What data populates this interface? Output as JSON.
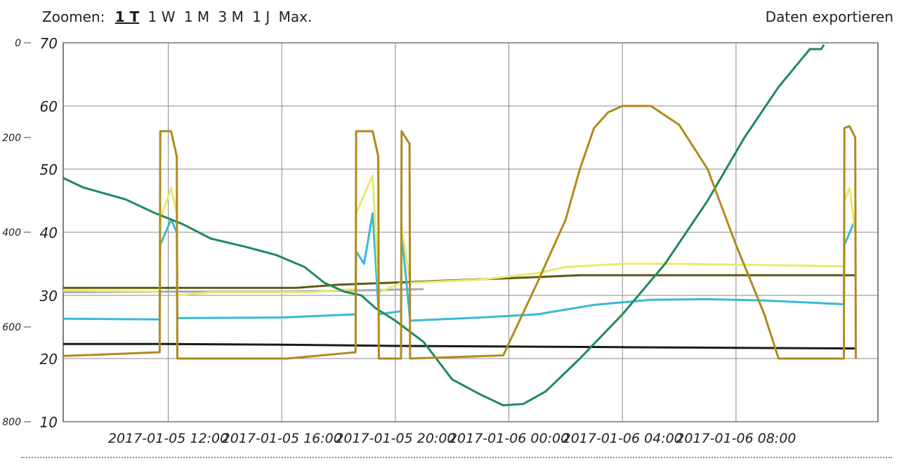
{
  "toolbar": {
    "zoom_label": "Zoomen:",
    "zoom_options": [
      "1 T",
      "1 W",
      "1 M",
      "3 M",
      "1 J",
      "Max."
    ],
    "active_zoom": "1 T",
    "export_label": "Daten exportieren"
  },
  "chart_data": {
    "type": "line",
    "title": "",
    "xlabel": "",
    "ylabel": "",
    "x_tick_labels": [
      "2017-01-05 12:00",
      "2017-01-05 16:00",
      "2017-01-05 20:00",
      "2017-01-06 00:00",
      "2017-01-06 04:00",
      "2017-01-06 08:00"
    ],
    "y_axis_left": {
      "ticks": [
        10,
        20,
        30,
        40,
        50,
        60,
        70
      ],
      "range": [
        10,
        70
      ]
    },
    "y_axis_secondary": {
      "ticks": [
        "0",
        "200",
        "400",
        "600",
        "800"
      ],
      "reversed": true
    },
    "grid": true,
    "series": [
      {
        "color": "#1f8a5b",
        "points": [
          [
            8.3,
            48.6
          ],
          [
            9.0,
            47.1
          ],
          [
            10.5,
            45.2
          ],
          [
            11.5,
            43.1
          ],
          [
            12.5,
            41.3
          ],
          [
            13.5,
            39.0
          ],
          [
            14.8,
            37.6
          ],
          [
            15.8,
            36.4
          ],
          [
            16.8,
            34.5
          ],
          [
            17.5,
            32.0
          ],
          [
            18.2,
            30.6
          ],
          [
            18.8,
            30.0
          ],
          [
            19.3,
            28.0
          ],
          [
            20.0,
            26.0
          ],
          [
            21.0,
            22.6
          ],
          [
            22.0,
            16.7
          ],
          [
            23.0,
            14.3
          ],
          [
            23.8,
            12.6
          ],
          [
            24.5,
            12.8
          ],
          [
            25.3,
            14.8
          ],
          [
            26.5,
            20.0
          ],
          [
            28.0,
            27.0
          ],
          [
            29.5,
            35.0
          ],
          [
            31.0,
            45.0
          ],
          [
            32.3,
            55.0
          ],
          [
            33.5,
            63.0
          ],
          [
            34.6,
            69.0
          ],
          [
            35.0,
            69.0
          ],
          [
            35.1,
            69.7
          ]
        ]
      },
      {
        "color": "#b08a1e",
        "points": [
          [
            8.3,
            20.4
          ],
          [
            11.7,
            21.0
          ],
          [
            11.72,
            56.0
          ],
          [
            12.1,
            56.0
          ],
          [
            12.3,
            52.0
          ],
          [
            12.32,
            20.0
          ],
          [
            16.2,
            20.0
          ],
          [
            18.6,
            21.0
          ],
          [
            18.62,
            56.0
          ],
          [
            19.2,
            56.0
          ],
          [
            19.4,
            52.0
          ],
          [
            19.42,
            20.0
          ],
          [
            20.2,
            20.0
          ],
          [
            20.22,
            56.0
          ],
          [
            20.5,
            54.0
          ],
          [
            20.52,
            20.0
          ],
          [
            23.8,
            20.5
          ],
          [
            25.0,
            32.0
          ],
          [
            26.0,
            42.0
          ],
          [
            26.5,
            50.0
          ],
          [
            27.0,
            56.5
          ],
          [
            27.5,
            59.0
          ],
          [
            28.0,
            60.0
          ],
          [
            29.0,
            60.0
          ],
          [
            30.0,
            57.0
          ],
          [
            31.0,
            50.0
          ],
          [
            32.0,
            38.0
          ],
          [
            33.0,
            27.0
          ],
          [
            33.5,
            20.0
          ],
          [
            35.8,
            20.0
          ],
          [
            35.82,
            56.5
          ],
          [
            36.0,
            56.8
          ],
          [
            36.2,
            55.0
          ],
          [
            36.22,
            20.0
          ]
        ]
      },
      {
        "color": "#e8ea6c",
        "points": [
          [
            8.3,
            30.8
          ],
          [
            11.7,
            30.6
          ],
          [
            11.72,
            42.0
          ],
          [
            12.1,
            47.0
          ],
          [
            12.3,
            43.0
          ],
          [
            12.32,
            30.0
          ],
          [
            13.5,
            30.5
          ],
          [
            17.0,
            30.5
          ],
          [
            18.6,
            31.0
          ],
          [
            18.62,
            43.0
          ],
          [
            19.2,
            49.0
          ],
          [
            19.42,
            30.5
          ],
          [
            20.2,
            32.0
          ],
          [
            20.22,
            41.0
          ],
          [
            20.52,
            32.0
          ],
          [
            23.0,
            32.5
          ],
          [
            25.0,
            33.5
          ],
          [
            26.0,
            34.5
          ],
          [
            28.0,
            35.0
          ],
          [
            30.0,
            35.0
          ],
          [
            33.0,
            34.8
          ],
          [
            35.8,
            34.6
          ],
          [
            35.82,
            45.0
          ],
          [
            36.0,
            47.0
          ],
          [
            36.2,
            40.0
          ]
        ]
      },
      {
        "color": "#3ab8d6",
        "points": [
          [
            8.3,
            26.3
          ],
          [
            11.7,
            26.2
          ],
          [
            11.72,
            38.0
          ],
          [
            12.1,
            42.0
          ],
          [
            12.3,
            40.0
          ],
          [
            12.32,
            26.4
          ],
          [
            16.0,
            26.5
          ],
          [
            18.6,
            27.0
          ],
          [
            18.62,
            37.0
          ],
          [
            18.9,
            35.0
          ],
          [
            19.2,
            43.0
          ],
          [
            19.42,
            27.0
          ],
          [
            20.2,
            27.5
          ],
          [
            20.22,
            40.0
          ],
          [
            20.52,
            26.0
          ],
          [
            23.0,
            26.5
          ],
          [
            25.0,
            27.0
          ],
          [
            27.0,
            28.5
          ],
          [
            29.0,
            29.3
          ],
          [
            31.0,
            29.4
          ],
          [
            33.0,
            29.2
          ],
          [
            35.8,
            28.6
          ],
          [
            35.82,
            38.0
          ],
          [
            36.2,
            42.0
          ]
        ]
      },
      {
        "color": "#1a1a1a",
        "points": [
          [
            8.3,
            22.3
          ],
          [
            12.0,
            22.3
          ],
          [
            16.0,
            22.2
          ],
          [
            20.0,
            22.0
          ],
          [
            24.0,
            21.9
          ],
          [
            28.0,
            21.8
          ],
          [
            32.0,
            21.7
          ],
          [
            36.2,
            21.6
          ]
        ]
      },
      {
        "color": "#5f5a10",
        "points": [
          [
            8.3,
            31.2
          ],
          [
            12.0,
            31.2
          ],
          [
            16.5,
            31.2
          ],
          [
            18.0,
            31.7
          ],
          [
            21.0,
            32.2
          ],
          [
            25.0,
            32.9
          ],
          [
            26.5,
            33.2
          ],
          [
            29.0,
            33.2
          ],
          [
            32.0,
            33.2
          ],
          [
            36.2,
            33.2
          ]
        ]
      },
      {
        "color": "#a8a8b8",
        "points": [
          [
            8.3,
            30.5
          ],
          [
            12.0,
            30.6
          ],
          [
            16.0,
            30.6
          ],
          [
            19.0,
            30.8
          ],
          [
            21.0,
            31.0
          ]
        ]
      }
    ]
  }
}
